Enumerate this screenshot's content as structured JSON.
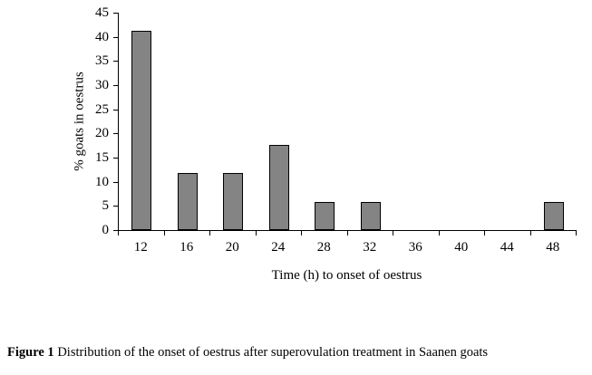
{
  "chart_data": {
    "type": "bar",
    "categories": [
      "12",
      "16",
      "20",
      "24",
      "28",
      "32",
      "36",
      "40",
      "44",
      "48"
    ],
    "values": [
      41.2,
      11.8,
      11.8,
      17.6,
      5.9,
      5.9,
      0,
      0,
      0,
      5.9
    ],
    "title": "",
    "xlabel": "Time (h) to onset of oestrus",
    "ylabel": "% goats in oestrus",
    "ylim": [
      0,
      45
    ],
    "ytick_step": 5,
    "bar_color": "#848484",
    "bar_border_color": "#000000",
    "grid": false,
    "legend_position": "none"
  },
  "caption": {
    "label": "Figure 1",
    "text": " Distribution of the onset of oestrus after superovulation treatment in Saanen goats"
  }
}
